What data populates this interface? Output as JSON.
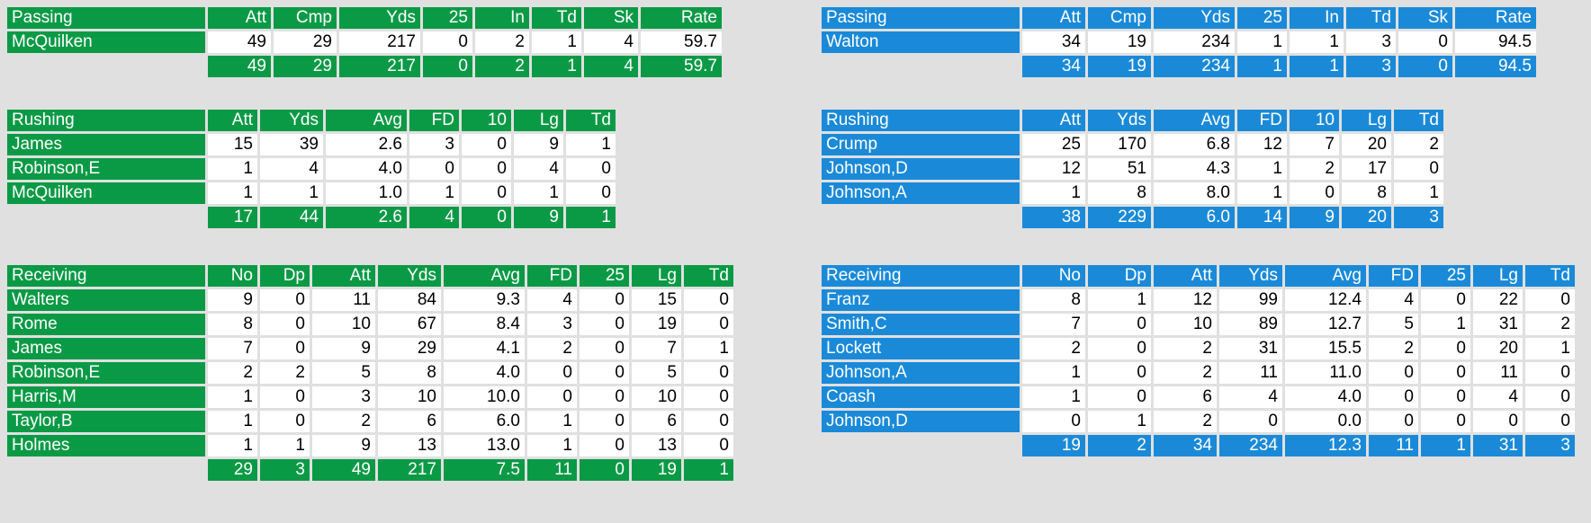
{
  "tables": [
    {
      "id": "left-passing",
      "team_color": "green",
      "columns": [
        "Passing",
        "Att",
        "Cmp",
        "Yds",
        "25",
        "In",
        "Td",
        "Sk",
        "Rate"
      ],
      "rows": [
        [
          "McQuilken",
          "49",
          "29",
          "217",
          "0",
          "2",
          "1",
          "4",
          "59.7"
        ]
      ],
      "total": [
        "49",
        "29",
        "217",
        "0",
        "2",
        "1",
        "4",
        "59.7"
      ]
    },
    {
      "id": "left-rushing",
      "team_color": "green",
      "columns": [
        "Rushing",
        "Att",
        "Yds",
        "Avg",
        "FD",
        "10",
        "Lg",
        "Td"
      ],
      "rows": [
        [
          "James",
          "15",
          "39",
          "2.6",
          "3",
          "0",
          "9",
          "1"
        ],
        [
          "Robinson,E",
          "1",
          "4",
          "4.0",
          "0",
          "0",
          "4",
          "0"
        ],
        [
          "McQuilken",
          "1",
          "1",
          "1.0",
          "1",
          "0",
          "1",
          "0"
        ]
      ],
      "total": [
        "17",
        "44",
        "2.6",
        "4",
        "0",
        "9",
        "1"
      ]
    },
    {
      "id": "left-receiving",
      "team_color": "green",
      "columns": [
        "Receiving",
        "No",
        "Dp",
        "Att",
        "Yds",
        "Avg",
        "FD",
        "25",
        "Lg",
        "Td"
      ],
      "rows": [
        [
          "Walters",
          "9",
          "0",
          "11",
          "84",
          "9.3",
          "4",
          "0",
          "15",
          "0"
        ],
        [
          "Rome",
          "8",
          "0",
          "10",
          "67",
          "8.4",
          "3",
          "0",
          "19",
          "0"
        ],
        [
          "James",
          "7",
          "0",
          "9",
          "29",
          "4.1",
          "2",
          "0",
          "7",
          "1"
        ],
        [
          "Robinson,E",
          "2",
          "2",
          "5",
          "8",
          "4.0",
          "0",
          "0",
          "5",
          "0"
        ],
        [
          "Harris,M",
          "1",
          "0",
          "3",
          "10",
          "10.0",
          "0",
          "0",
          "10",
          "0"
        ],
        [
          "Taylor,B",
          "1",
          "0",
          "2",
          "6",
          "6.0",
          "1",
          "0",
          "6",
          "0"
        ],
        [
          "Holmes",
          "1",
          "1",
          "9",
          "13",
          "13.0",
          "1",
          "0",
          "13",
          "0"
        ]
      ],
      "total": [
        "29",
        "3",
        "49",
        "217",
        "7.5",
        "11",
        "0",
        "19",
        "1"
      ]
    },
    {
      "id": "right-passing",
      "team_color": "blue",
      "columns": [
        "Passing",
        "Att",
        "Cmp",
        "Yds",
        "25",
        "In",
        "Td",
        "Sk",
        "Rate"
      ],
      "rows": [
        [
          "Walton",
          "34",
          "19",
          "234",
          "1",
          "1",
          "3",
          "0",
          "94.5"
        ]
      ],
      "total": [
        "34",
        "19",
        "234",
        "1",
        "1",
        "3",
        "0",
        "94.5"
      ]
    },
    {
      "id": "right-rushing",
      "team_color": "blue",
      "columns": [
        "Rushing",
        "Att",
        "Yds",
        "Avg",
        "FD",
        "10",
        "Lg",
        "Td"
      ],
      "rows": [
        [
          "Crump",
          "25",
          "170",
          "6.8",
          "12",
          "7",
          "20",
          "2"
        ],
        [
          "Johnson,D",
          "12",
          "51",
          "4.3",
          "1",
          "2",
          "17",
          "0"
        ],
        [
          "Johnson,A",
          "1",
          "8",
          "8.0",
          "1",
          "0",
          "8",
          "1"
        ]
      ],
      "total": [
        "38",
        "229",
        "6.0",
        "14",
        "9",
        "20",
        "3"
      ]
    },
    {
      "id": "right-receiving",
      "team_color": "blue",
      "columns": [
        "Receiving",
        "No",
        "Dp",
        "Att",
        "Yds",
        "Avg",
        "FD",
        "25",
        "Lg",
        "Td"
      ],
      "rows": [
        [
          "Franz",
          "8",
          "1",
          "12",
          "99",
          "12.4",
          "4",
          "0",
          "22",
          "0"
        ],
        [
          "Smith,C",
          "7",
          "0",
          "10",
          "89",
          "12.7",
          "5",
          "1",
          "31",
          "2"
        ],
        [
          "Lockett",
          "2",
          "0",
          "2",
          "31",
          "15.5",
          "2",
          "0",
          "20",
          "1"
        ],
        [
          "Johnson,A",
          "1",
          "0",
          "2",
          "11",
          "11.0",
          "0",
          "0",
          "11",
          "0"
        ],
        [
          "Coash",
          "1",
          "0",
          "6",
          "4",
          "4.0",
          "0",
          "0",
          "4",
          "0"
        ],
        [
          "Johnson,D",
          "0",
          "1",
          "2",
          "0",
          "0.0",
          "0",
          "0",
          "0",
          "0"
        ]
      ],
      "total": [
        "19",
        "2",
        "34",
        "234",
        "12.3",
        "11",
        "1",
        "31",
        "3"
      ]
    }
  ],
  "colors": {
    "green": "#0a9a46",
    "blue": "#1a8ad8",
    "background": "#e0e0e0"
  }
}
